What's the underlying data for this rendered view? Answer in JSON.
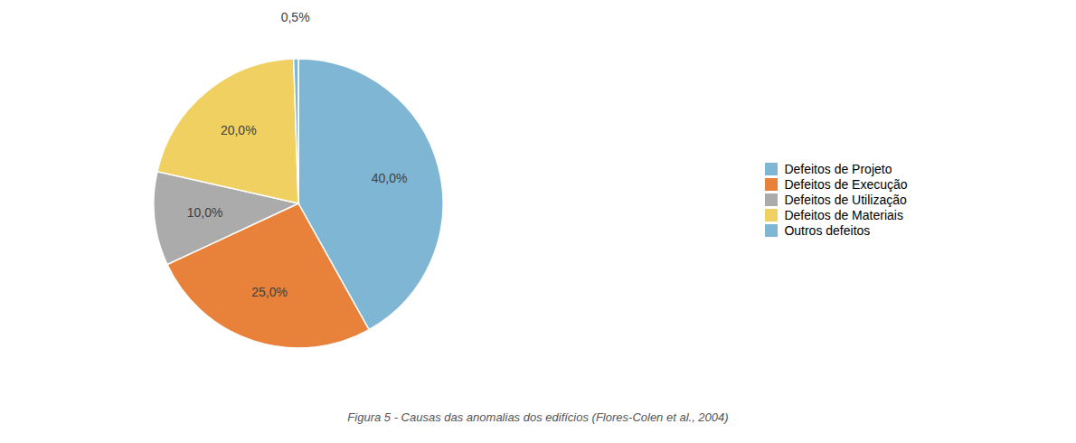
{
  "chart_data": {
    "type": "pie",
    "title": "Figura 5 - Causas das anomalias dos edifícios (Flores-Colen et al., 2004)",
    "categories": [
      "Defeitos de Projeto",
      "Defeitos de Execução",
      "Defeitos de Utilização",
      "Defeitos de Materiais",
      "Outros defeitos"
    ],
    "values": [
      40.0,
      25.0,
      10.0,
      20.0,
      0.5
    ],
    "value_labels": [
      "40,0%",
      "25,0%",
      "10,0%",
      "20,0%",
      "0,5%"
    ],
    "colors": [
      "#7EB6D4",
      "#E8813A",
      "#ABABAB",
      "#F0D060",
      "#7EB6D4"
    ],
    "data_labels": true,
    "legend": "right"
  }
}
